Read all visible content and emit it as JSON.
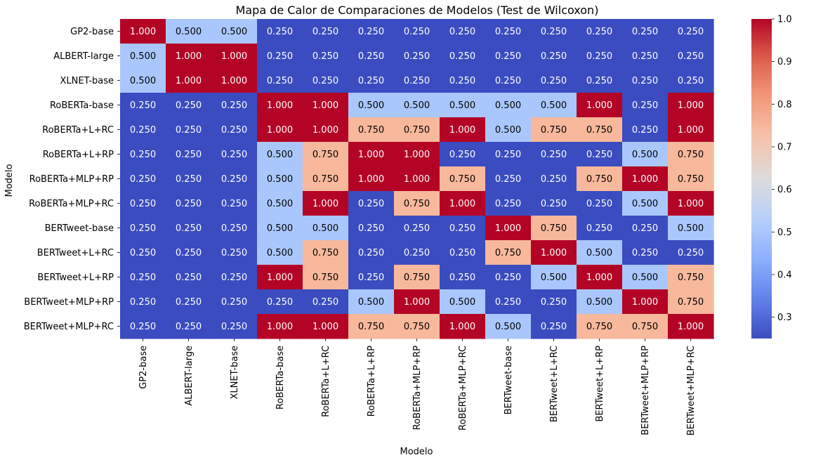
{
  "chart_data": {
    "type": "heatmap",
    "title": "Mapa de Calor de Comparaciones de Modelos (Test de Wilcoxon)",
    "xlabel": "Modelo",
    "ylabel": "Modelo",
    "rows": [
      "GP2-base",
      "ALBERT-large",
      "XLNET-base",
      "RoBERTa-base",
      "RoBERTa+L+RC",
      "RoBERTa+L+RP",
      "RoBERTa+MLP+RP",
      "RoBERTa+MLP+RC",
      "BERTweet-base",
      "BERTweet+L+RC",
      "BERTweet+L+RP",
      "BERTweet+MLP+RP",
      "BERTweet+MLP+RC"
    ],
    "columns": [
      "GP2-base",
      "ALBERT-large",
      "XLNET-base",
      "RoBERTa-base",
      "RoBERTa+L+RC",
      "RoBERTa+L+RP",
      "RoBERTa+MLP+RP",
      "RoBERTa+MLP+RC",
      "BERTweet-base",
      "BERTweet+L+RC",
      "BERTweet+L+RP",
      "BERTweet+MLP+RP",
      "BERTweet+MLP+RC"
    ],
    "values": [
      [
        1.0,
        0.5,
        0.5,
        0.25,
        0.25,
        0.25,
        0.25,
        0.25,
        0.25,
        0.25,
        0.25,
        0.25,
        0.25
      ],
      [
        0.5,
        1.0,
        1.0,
        0.25,
        0.25,
        0.25,
        0.25,
        0.25,
        0.25,
        0.25,
        0.25,
        0.25,
        0.25
      ],
      [
        0.5,
        1.0,
        1.0,
        0.25,
        0.25,
        0.25,
        0.25,
        0.25,
        0.25,
        0.25,
        0.25,
        0.25,
        0.25
      ],
      [
        0.25,
        0.25,
        0.25,
        1.0,
        1.0,
        0.5,
        0.5,
        0.5,
        0.5,
        0.5,
        1.0,
        0.25,
        1.0
      ],
      [
        0.25,
        0.25,
        0.25,
        1.0,
        1.0,
        0.75,
        0.75,
        1.0,
        0.5,
        0.75,
        0.75,
        0.25,
        1.0
      ],
      [
        0.25,
        0.25,
        0.25,
        0.5,
        0.75,
        1.0,
        1.0,
        0.25,
        0.25,
        0.25,
        0.25,
        0.5,
        0.75
      ],
      [
        0.25,
        0.25,
        0.25,
        0.5,
        0.75,
        1.0,
        1.0,
        0.75,
        0.25,
        0.25,
        0.75,
        1.0,
        0.75
      ],
      [
        0.25,
        0.25,
        0.25,
        0.5,
        1.0,
        0.25,
        0.75,
        1.0,
        0.25,
        0.25,
        0.25,
        0.5,
        1.0
      ],
      [
        0.25,
        0.25,
        0.25,
        0.5,
        0.5,
        0.25,
        0.25,
        0.25,
        1.0,
        0.75,
        0.25,
        0.25,
        0.5
      ],
      [
        0.25,
        0.25,
        0.25,
        0.5,
        0.75,
        0.25,
        0.25,
        0.25,
        0.75,
        1.0,
        0.5,
        0.25,
        0.25
      ],
      [
        0.25,
        0.25,
        0.25,
        1.0,
        0.75,
        0.25,
        0.75,
        0.25,
        0.25,
        0.5,
        1.0,
        0.5,
        0.75
      ],
      [
        0.25,
        0.25,
        0.25,
        0.25,
        0.25,
        0.5,
        1.0,
        0.5,
        0.25,
        0.25,
        0.5,
        1.0,
        0.75
      ],
      [
        0.25,
        0.25,
        0.25,
        1.0,
        1.0,
        0.75,
        0.75,
        1.0,
        0.5,
        0.25,
        0.75,
        0.75,
        1.0
      ]
    ],
    "value_format": "%.3f",
    "colormap": "coolwarm",
    "color_range": [
      0.25,
      1.0
    ],
    "colors": {
      "0.250": "#3b4cc0",
      "0.500": "#aac7fd",
      "0.750": "#f7b89c",
      "1.000": "#b40426"
    },
    "colorbar": {
      "ticks": [
        "0.3",
        "0.4",
        "0.5",
        "0.6",
        "0.7",
        "0.8",
        "0.9",
        "1.0"
      ],
      "tick_values": [
        0.3,
        0.4,
        0.5,
        0.6,
        0.7,
        0.8,
        0.9,
        1.0
      ],
      "placement": "right"
    }
  }
}
